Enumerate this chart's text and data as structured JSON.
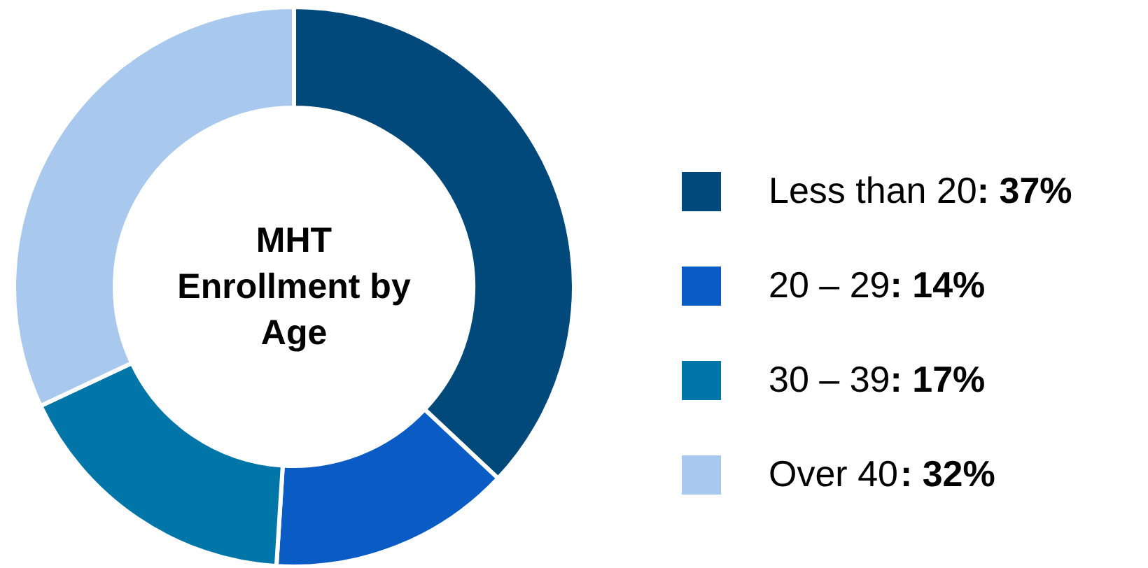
{
  "chart_data": {
    "type": "donut",
    "title": "MHT\nEnrollment by\nAge",
    "categories": [
      "Less than 20",
      "20 – 29",
      "30 – 39",
      "Over 40"
    ],
    "values": [
      37,
      14,
      17,
      32
    ],
    "value_labels": [
      ": 37%",
      ": 14%",
      ": 17%",
      ": 32%"
    ],
    "colors": [
      "#00497a",
      "#0a5bc4",
      "#0076a8",
      "#a8c8ee"
    ],
    "legend": "right"
  }
}
